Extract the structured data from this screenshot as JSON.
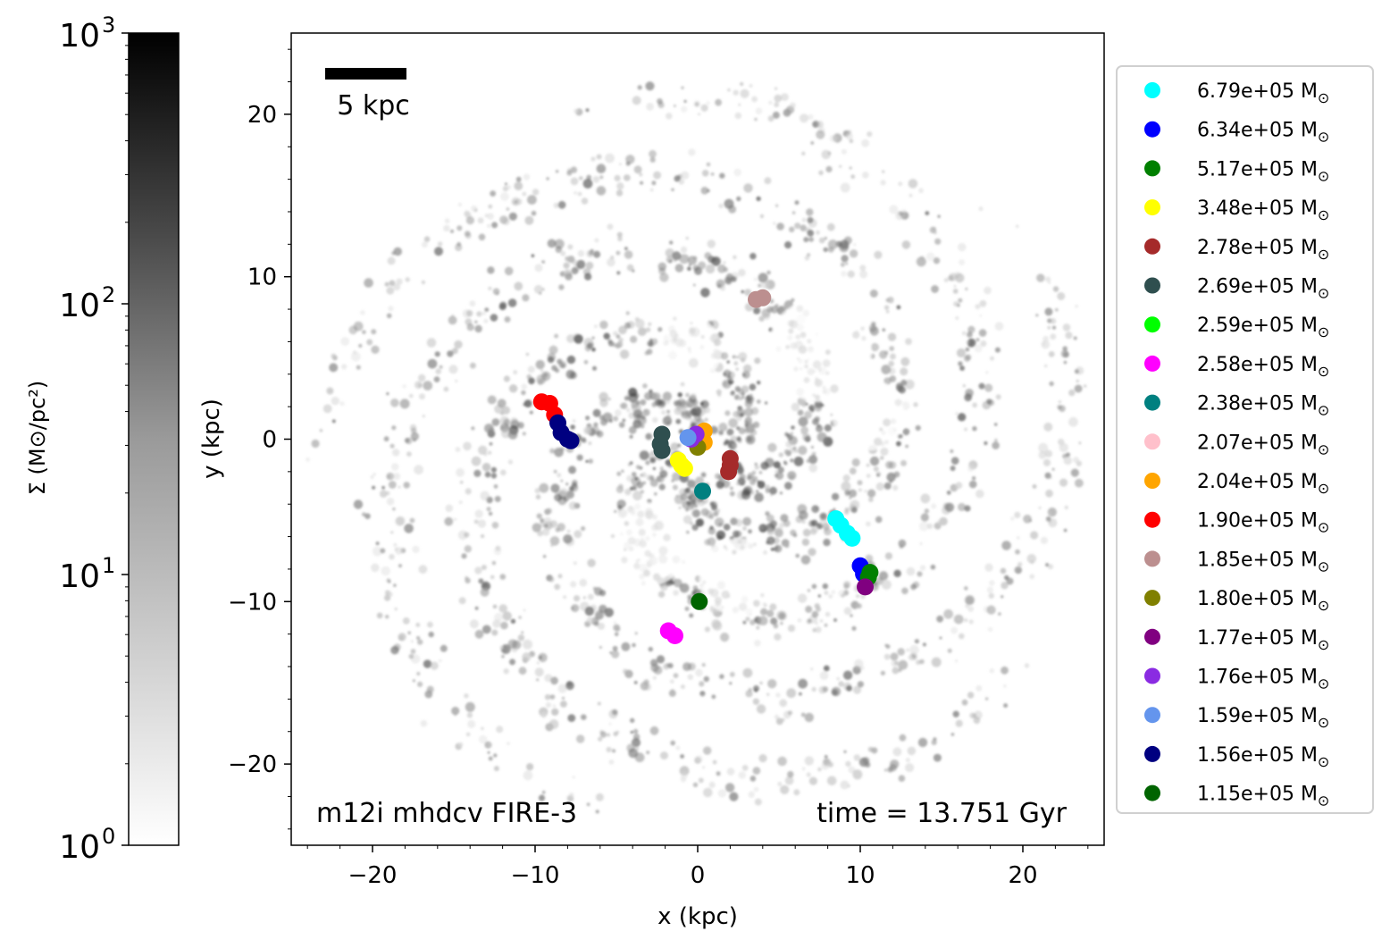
{
  "chart_data": {
    "type": "scatter",
    "title": "",
    "xlabel": "x (kpc)",
    "ylabel": "y (kpc)",
    "xlim": [
      -25,
      25
    ],
    "ylim": [
      -25,
      25
    ],
    "x_ticks": [
      -20,
      -10,
      0,
      10,
      20
    ],
    "x_tick_labels": [
      "−20",
      "−10",
      "0",
      "10",
      "20"
    ],
    "y_ticks": [
      -20,
      -10,
      0,
      10,
      20
    ],
    "y_tick_labels": [
      "−20",
      "−10",
      "0",
      "10",
      "20"
    ],
    "grid": false,
    "legend_position": "outside right",
    "scale_bar": {
      "label": "5 kpc",
      "length_kpc": 5
    },
    "annotations": {
      "left": "m12i mhdcv FIRE-3",
      "right": "time = 13.751 Gyr"
    },
    "background": "grayscale gas surface density map (spiral galaxy)",
    "colorbar": {
      "label": "Σ (M⊙/pc²)",
      "scale": "log",
      "range": [
        1,
        1000
      ],
      "ticks": [
        {
          "base": "10",
          "exp": "0",
          "value": 1
        },
        {
          "base": "10",
          "exp": "1",
          "value": 10
        },
        {
          "base": "10",
          "exp": "2",
          "value": 100
        },
        {
          "base": "10",
          "exp": "3",
          "value": 1000
        }
      ],
      "colormap": "Greys"
    },
    "series": [
      {
        "mass": "6.79e+05",
        "color": "#00ffff",
        "points": [
          [
            8.5,
            -4.9
          ],
          [
            8.8,
            -5.3
          ],
          [
            9.2,
            -5.8
          ],
          [
            9.5,
            -6.1
          ]
        ]
      },
      {
        "mass": "6.34e+05",
        "color": "#0000ff",
        "points": [
          [
            10.0,
            -7.8
          ],
          [
            10.2,
            -8.3
          ]
        ]
      },
      {
        "mass": "5.17e+05",
        "color": "#008000",
        "points": [
          [
            10.6,
            -8.2
          ],
          [
            10.5,
            -8.5
          ]
        ]
      },
      {
        "mass": "3.48e+05",
        "color": "#ffff00",
        "points": [
          [
            -1.2,
            -1.3
          ],
          [
            -1.0,
            -1.6
          ],
          [
            -0.8,
            -1.8
          ]
        ]
      },
      {
        "mass": "2.78e+05",
        "color": "#a52a2a",
        "points": [
          [
            2.0,
            -1.2
          ],
          [
            2.0,
            -1.6
          ],
          [
            1.9,
            -2.0
          ]
        ]
      },
      {
        "mass": "2.69e+05",
        "color": "#2f4f4f",
        "points": [
          [
            -2.3,
            -0.3
          ],
          [
            -2.2,
            0.3
          ],
          [
            -2.2,
            -0.7
          ]
        ]
      },
      {
        "mass": "2.59e+05",
        "color": "#00ff00",
        "points": []
      },
      {
        "mass": "2.58e+05",
        "color": "#ff00ff",
        "points": [
          [
            -1.8,
            -11.8
          ],
          [
            -1.4,
            -12.1
          ]
        ]
      },
      {
        "mass": "2.38e+05",
        "color": "#008080",
        "points": [
          [
            0.3,
            -3.2
          ]
        ]
      },
      {
        "mass": "2.07e+05",
        "color": "#ffc0cb",
        "points": []
      },
      {
        "mass": "2.04e+05",
        "color": "#ffa500",
        "points": [
          [
            0.4,
            0.5
          ],
          [
            0.4,
            -0.2
          ]
        ]
      },
      {
        "mass": "1.90e+05",
        "color": "#ff0000",
        "points": [
          [
            -9.6,
            2.3
          ],
          [
            -9.1,
            2.2
          ],
          [
            -8.8,
            1.5
          ]
        ]
      },
      {
        "mass": "1.85e+05",
        "color": "#bc8f8f",
        "points": [
          [
            3.6,
            8.6
          ],
          [
            4.0,
            8.7
          ]
        ]
      },
      {
        "mass": "1.80e+05",
        "color": "#808000",
        "points": [
          [
            0.0,
            -0.5
          ]
        ]
      },
      {
        "mass": "1.77e+05",
        "color": "#800080",
        "points": [
          [
            10.3,
            -9.1
          ]
        ]
      },
      {
        "mass": "1.76e+05",
        "color": "#8a2be2",
        "points": [
          [
            -0.4,
            0.0
          ],
          [
            -0.1,
            0.3
          ]
        ]
      },
      {
        "mass": "1.59e+05",
        "color": "#6495ed",
        "points": [
          [
            -0.6,
            0.1
          ]
        ]
      },
      {
        "mass": "1.56e+05",
        "color": "#000080",
        "points": [
          [
            -8.6,
            1.0
          ],
          [
            -8.4,
            0.4
          ],
          [
            -8.0,
            0.0
          ],
          [
            -7.8,
            -0.1
          ]
        ]
      },
      {
        "mass": "1.15e+05",
        "color": "#006400",
        "points": [
          [
            0.1,
            -10.0
          ]
        ]
      }
    ],
    "legend_unit": "M⊙"
  }
}
